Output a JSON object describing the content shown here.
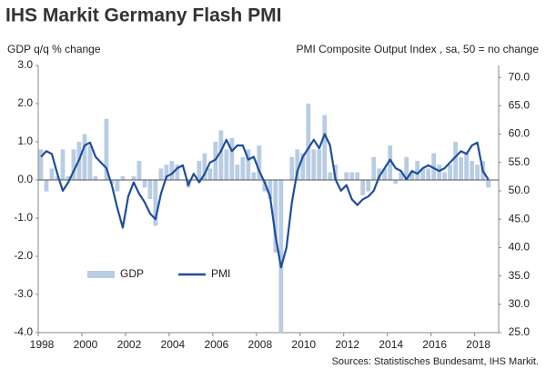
{
  "chart_data": {
    "type": "bar-line",
    "title": "IHS Markit Germany Flash PMI",
    "y_label": "GDP q/q % change",
    "y2_label": "PMI Composite Output Index , sa, 50 = no change",
    "source": "Sources: Statistisches Bundesamt, IHS Markit.",
    "x": [
      1998.125,
      1998.375,
      1998.625,
      1998.875,
      1999.125,
      1999.375,
      1999.625,
      1999.875,
      2000.125,
      2000.375,
      2000.625,
      2000.875,
      2001.125,
      2001.375,
      2001.625,
      2001.875,
      2002.125,
      2002.375,
      2002.625,
      2002.875,
      2003.125,
      2003.375,
      2003.625,
      2003.875,
      2004.125,
      2004.375,
      2004.625,
      2004.875,
      2005.125,
      2005.375,
      2005.625,
      2005.875,
      2006.125,
      2006.375,
      2006.625,
      2006.875,
      2007.125,
      2007.375,
      2007.625,
      2007.875,
      2008.125,
      2008.375,
      2008.625,
      2008.875,
      2009.125,
      2009.375,
      2009.625,
      2009.875,
      2010.125,
      2010.375,
      2010.625,
      2010.875,
      2011.125,
      2011.375,
      2011.625,
      2011.875,
      2012.125,
      2012.375,
      2012.625,
      2012.875,
      2013.125,
      2013.375,
      2013.625,
      2013.875,
      2014.125,
      2014.375,
      2014.625,
      2014.875,
      2015.125,
      2015.375,
      2015.625,
      2015.875,
      2016.125,
      2016.375,
      2016.625,
      2016.875,
      2017.125,
      2017.375,
      2017.625,
      2017.875,
      2018.125,
      2018.375,
      2018.625
    ],
    "series": [
      {
        "name": "GDP",
        "color": "#b8cce4",
        "axis": "y",
        "values": [
          0.8,
          -0.3,
          0.3,
          0.1,
          0.8,
          0.1,
          0.8,
          1.0,
          1.2,
          0.9,
          0.1,
          0.0,
          1.6,
          -0.1,
          -0.3,
          0.1,
          0.0,
          0.1,
          0.5,
          -0.2,
          -0.5,
          -1.2,
          0.3,
          0.4,
          0.5,
          0.4,
          0.0,
          -0.2,
          0.0,
          0.5,
          0.7,
          0.3,
          1.0,
          1.3,
          0.8,
          1.1,
          0.4,
          0.6,
          0.8,
          0.2,
          0.9,
          -0.3,
          -0.5,
          -1.9,
          -4.0,
          0.0,
          0.6,
          0.8,
          0.7,
          2.0,
          0.8,
          0.8,
          1.7,
          0.2,
          0.4,
          0.0,
          0.2,
          0.2,
          0.2,
          -0.4,
          -0.3,
          0.6,
          0.3,
          0.3,
          0.9,
          -0.1,
          0.2,
          0.6,
          0.2,
          0.5,
          0.3,
          0.3,
          0.7,
          0.4,
          0.2,
          0.4,
          1.0,
          0.6,
          0.7,
          0.5,
          0.4,
          0.5,
          -0.2
        ]
      },
      {
        "name": "PMI",
        "color": "#1f4e99",
        "axis": "y2",
        "values": [
          56.0,
          57.0,
          56.5,
          53.0,
          50.0,
          51.5,
          53.5,
          55.5,
          58.0,
          58.5,
          56.0,
          55.0,
          54.0,
          51.0,
          47.0,
          43.5,
          49.0,
          51.5,
          49.5,
          48.0,
          46.0,
          45.0,
          49.5,
          52.5,
          53.0,
          54.0,
          54.5,
          51.0,
          53.0,
          51.5,
          53.0,
          55.0,
          55.5,
          57.0,
          59.0,
          57.0,
          58.0,
          58.0,
          55.5,
          56.0,
          53.5,
          51.5,
          49.0,
          42.0,
          36.5,
          40.0,
          48.0,
          53.5,
          56.0,
          57.5,
          59.0,
          57.5,
          60.0,
          58.0,
          52.0,
          50.0,
          51.0,
          48.5,
          47.5,
          48.5,
          49.0,
          50.0,
          52.5,
          54.0,
          55.5,
          54.0,
          53.5,
          52.0,
          53.5,
          53.0,
          54.0,
          54.5,
          54.0,
          53.5,
          54.0,
          55.0,
          56.0,
          57.0,
          56.5,
          58.0,
          58.5,
          53.5,
          52.0
        ]
      }
    ],
    "xlim": [
      1998,
      2019.1
    ],
    "xticks": [
      1998,
      2000,
      2002,
      2004,
      2006,
      2008,
      2010,
      2012,
      2014,
      2016,
      2018
    ],
    "ylim": [
      -4,
      3
    ],
    "yticks": [
      {
        "value": 3,
        "label": "3.0"
      },
      {
        "value": 2,
        "label": "2.0"
      },
      {
        "value": 1,
        "label": "1.0"
      },
      {
        "value": 0,
        "label": "0.0"
      },
      {
        "value": -1,
        "label": "-1.0"
      },
      {
        "value": -2,
        "label": "-2.0"
      },
      {
        "value": -3,
        "label": "-3.0"
      },
      {
        "value": -4,
        "label": "-4.0"
      }
    ],
    "y2lim": [
      25,
      72.1
    ],
    "y2ticks": [
      {
        "value": 70,
        "label": "70.0"
      },
      {
        "value": 65,
        "label": "65.0"
      },
      {
        "value": 60,
        "label": "60.0"
      },
      {
        "value": 55,
        "label": "55.0"
      },
      {
        "value": 50,
        "label": "50.0"
      },
      {
        "value": 45,
        "label": "45.0"
      },
      {
        "value": 40,
        "label": "40.0"
      },
      {
        "value": 35,
        "label": "35.0"
      },
      {
        "value": 30,
        "label": "30.0"
      },
      {
        "value": 25,
        "label": "25.0"
      }
    ]
  }
}
